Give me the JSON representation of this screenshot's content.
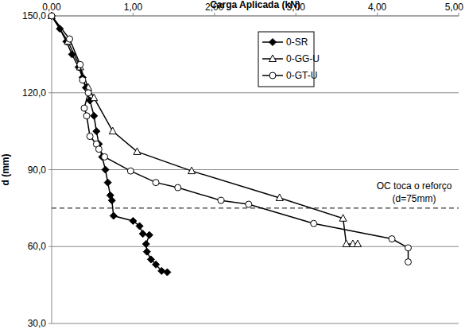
{
  "chart_data": {
    "type": "line",
    "x_label": "Carga Aplicada (kN)",
    "y_label": "d (mm)",
    "xlim": [
      0,
      5
    ],
    "xticks": [
      {
        "value": 0,
        "label": "0,00"
      },
      {
        "value": 1,
        "label": "1,00"
      },
      {
        "value": 2,
        "label": "2,00"
      },
      {
        "value": 3,
        "label": "3,00"
      },
      {
        "value": 4,
        "label": "4,00"
      },
      {
        "value": 5,
        "label": "5,00"
      }
    ],
    "ylim": [
      30,
      150
    ],
    "yticks": [
      {
        "value": 30,
        "label": "30,0"
      },
      {
        "value": 60,
        "label": "60,0"
      },
      {
        "value": 90,
        "label": "90,0"
      },
      {
        "value": 120,
        "label": "120,0"
      },
      {
        "value": 150,
        "label": "150,0"
      }
    ],
    "grid": true,
    "legend": "upper-right",
    "reference_lines": [
      {
        "y": 75,
        "line_style": "dashed",
        "label": [
          "OC toca o reforço",
          "(d=75mm)"
        ]
      }
    ],
    "series": [
      {
        "name": "0-SR",
        "color": "#000000",
        "marker": "diamond",
        "line_style": "solid",
        "x": [
          0.0,
          0.1,
          0.18,
          0.25,
          0.33,
          0.38,
          0.42,
          0.47,
          0.52,
          0.55,
          0.58,
          0.62,
          0.66,
          0.69,
          0.72,
          0.74,
          0.76,
          1.0,
          1.08,
          1.12,
          1.2,
          1.16,
          1.17,
          1.22,
          1.28,
          1.35,
          1.42
        ],
        "values": [
          150,
          145,
          140,
          135,
          130,
          126,
          122,
          117,
          111,
          105,
          100,
          95,
          90,
          85,
          80,
          78,
          72,
          70,
          68,
          65,
          64.5,
          61,
          58,
          55,
          53,
          50.5,
          50
        ]
      },
      {
        "name": "0-GG-U",
        "color": "#000000",
        "marker": "triangle-open",
        "line_style": "solid",
        "x": [
          0.0,
          0.2,
          0.35,
          0.45,
          0.52,
          0.75,
          1.05,
          1.72,
          2.8,
          3.58,
          3.62,
          3.7,
          3.76
        ],
        "values": [
          150,
          140,
          130,
          122,
          118,
          105,
          97,
          89.5,
          79,
          71,
          61,
          61,
          61
        ]
      },
      {
        "name": "0-GT-U",
        "color": "#000000",
        "marker": "circle-open",
        "line_style": "solid",
        "x": [
          0.0,
          0.22,
          0.35,
          0.38,
          0.45,
          0.4,
          0.43,
          0.47,
          0.55,
          0.58,
          0.65,
          0.97,
          1.28,
          1.55,
          2.08,
          2.42,
          3.22,
          4.18,
          4.38,
          4.38
        ],
        "values": [
          150,
          141,
          131,
          125,
          120,
          114,
          111,
          103,
          100,
          98,
          95,
          89.5,
          85,
          83,
          78,
          76.5,
          69,
          63,
          59.5,
          54
        ]
      }
    ]
  }
}
